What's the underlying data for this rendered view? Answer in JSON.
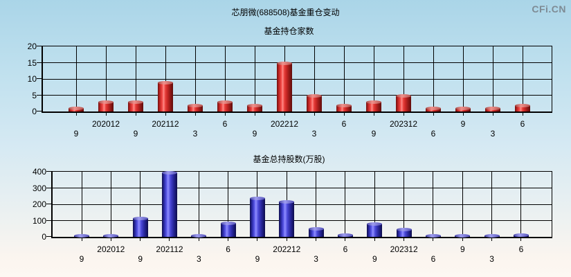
{
  "page": {
    "title": "芯朋微(688508)基金重仓变动",
    "logo": "CFi.CN"
  },
  "colors": {
    "background_top": "#aad5e8",
    "background_bottom": "#fdf8f2",
    "bar_red": "#e63c38",
    "bar_blue": "#4b49d8",
    "grid": "#000000",
    "logo_gray": "#7e8b94",
    "text": "#000000"
  },
  "chart_data": [
    {
      "type": "bar",
      "title": "基金持仓家数",
      "categories": [
        "9",
        "202012",
        "9",
        "202112",
        "3",
        "6",
        "9",
        "202212",
        "3",
        "6",
        "9",
        "202312",
        "6",
        "9",
        "3",
        "6"
      ],
      "values": [
        1,
        3,
        3,
        9,
        2,
        3,
        2,
        15,
        5,
        2,
        3,
        5,
        1,
        1,
        1,
        2
      ],
      "xlabel": "",
      "ylabel": "",
      "ylim": [
        0,
        20
      ],
      "yticks": [
        0,
        5,
        10,
        15,
        20
      ],
      "bar_color": "red",
      "grid": true,
      "legend": "none"
    },
    {
      "type": "bar",
      "title": "基金总持股数(万股)",
      "categories": [
        "9",
        "202012",
        "9",
        "202112",
        "3",
        "6",
        "9",
        "202212",
        "3",
        "6",
        "9",
        "202312",
        "6",
        "9",
        "3",
        "6"
      ],
      "values": [
        4,
        4,
        114,
        395,
        9,
        87,
        237,
        218,
        52,
        12,
        82,
        48,
        3,
        4,
        6,
        14
      ],
      "xlabel": "",
      "ylabel": "",
      "ylim": [
        0,
        400
      ],
      "yticks": [
        0,
        100,
        200,
        300,
        400
      ],
      "bar_color": "blue",
      "grid": true,
      "legend": "none"
    }
  ]
}
